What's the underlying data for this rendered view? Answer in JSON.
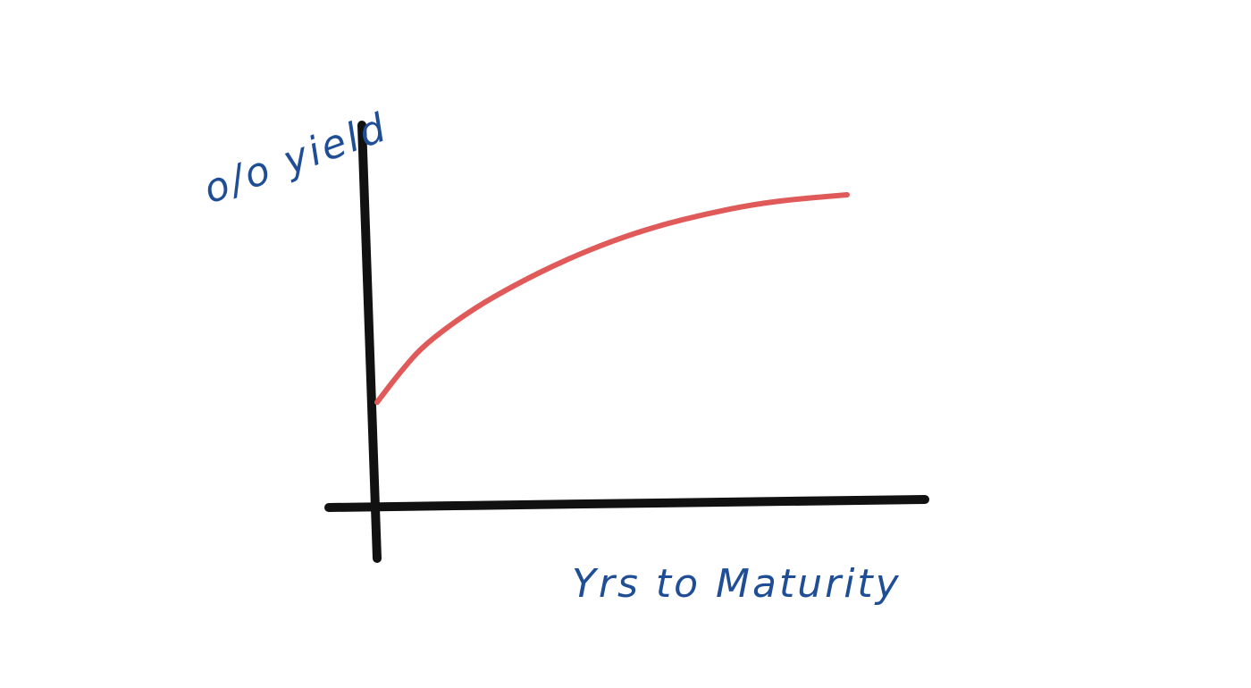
{
  "chart_data": {
    "type": "line",
    "title": "",
    "xlabel": "Yrs to Maturity",
    "ylabel": "o/o yield",
    "xlim": [
      0,
      10
    ],
    "ylim": [
      0,
      10
    ],
    "grid": false,
    "legend": "none",
    "series": [
      {
        "color": "#e05a5a",
        "x": [
          0,
          0.5,
          1,
          2,
          3,
          4,
          5,
          6,
          7,
          8,
          9,
          10
        ],
        "y": [
          2.6,
          3.4,
          4.1,
          5.0,
          5.7,
          6.3,
          6.8,
          7.2,
          7.5,
          7.75,
          7.9,
          8.0
        ]
      }
    ]
  },
  "colors": {
    "axis": "#111111",
    "label": "#1f4e96",
    "curve": "#e05a5a"
  }
}
